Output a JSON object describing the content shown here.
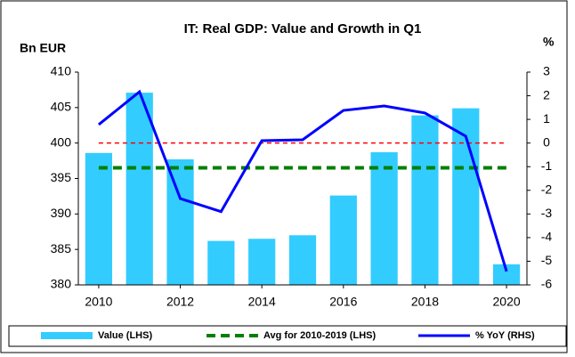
{
  "chart_data": {
    "type": "bar_line",
    "title": "IT: Real GDP: Value and Growth in Q1",
    "ylabel": "Bn EUR",
    "y2label": "%",
    "x": [
      2010,
      2011,
      2012,
      2013,
      2014,
      2015,
      2016,
      2017,
      2018,
      2019,
      2020
    ],
    "xlim": [
      2009.5,
      2020.5
    ],
    "xticks": [
      2010,
      2012,
      2014,
      2016,
      2018,
      2020
    ],
    "ylim": [
      380,
      410
    ],
    "yticks": [
      380,
      385,
      390,
      395,
      400,
      405,
      410
    ],
    "y2lim": [
      -6,
      3
    ],
    "y2ticks": [
      -6,
      -5,
      -4,
      -3,
      -2,
      -1,
      0,
      1,
      2,
      3
    ],
    "series": [
      {
        "name": "Value (LHS)",
        "type": "bar",
        "color": "#33ccff",
        "values": [
          398.6,
          407.1,
          397.7,
          386.2,
          386.5,
          387.0,
          392.6,
          398.7,
          403.9,
          404.9,
          382.9
        ]
      },
      {
        "name": "Avg for 2010-2019 (LHS)",
        "type": "dashed-line",
        "color": "#008000",
        "values": [
          396.5,
          396.5,
          396.5,
          396.5,
          396.5,
          396.5,
          396.5,
          396.5,
          396.5,
          396.5,
          396.5
        ]
      },
      {
        "name": "% YoY (RHS)",
        "type": "line",
        "axis": "y2",
        "color": "#0000ff",
        "values": [
          0.78,
          2.17,
          -2.35,
          -2.9,
          0.1,
          0.14,
          1.38,
          1.57,
          1.27,
          0.29,
          -5.43
        ]
      }
    ],
    "reference_line": {
      "axis": "y2",
      "value": 0,
      "color": "#ff0000"
    },
    "legend": "bottom"
  }
}
